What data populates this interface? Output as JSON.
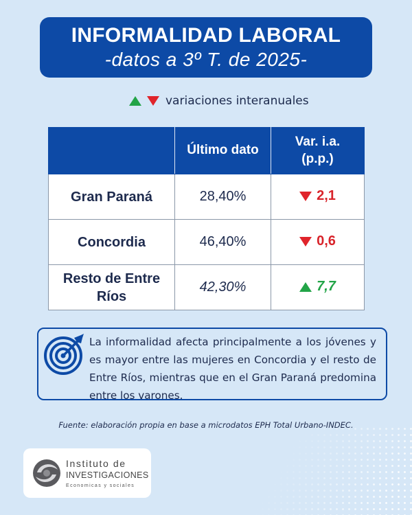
{
  "title": {
    "main": "INFORMALIDAD LABORAL",
    "sub": "-datos a 3º T. de 2025-"
  },
  "legend": {
    "label": "variaciones interanuales",
    "up_color": "#22a447",
    "down_color": "#e0242b"
  },
  "table": {
    "headers": [
      "",
      "Último dato",
      "Var. i.a. (p.p.)"
    ],
    "rows": [
      {
        "name": "Gran Paraná",
        "value": "28,40%",
        "variation": "2,1",
        "direction": "down"
      },
      {
        "name": "Concordia",
        "value": "46,40%",
        "variation": "0,6",
        "direction": "down"
      },
      {
        "name": "Resto de Entre Ríos",
        "value": "42,30%",
        "variation": "7,7",
        "direction": "up"
      }
    ]
  },
  "note": {
    "icon": "target-icon",
    "text": "La informalidad afecta principalmente a los jóvenes y es mayor entre las mujeres en Concordia y el resto de Entre Ríos, mientras que en el Gran Paraná predomina entre los varones."
  },
  "source": "Fuente: elaboración propia en base a microdatos EPH Total Urbano-INDEC.",
  "logo": {
    "line1": "Instituto de",
    "line2": "INVESTIGACIONES",
    "line3": "Economicas y sociales"
  },
  "colors": {
    "background": "#d6e7f7",
    "primary": "#0d4aa6",
    "negative": "#d8232a",
    "positive": "#22a447"
  }
}
